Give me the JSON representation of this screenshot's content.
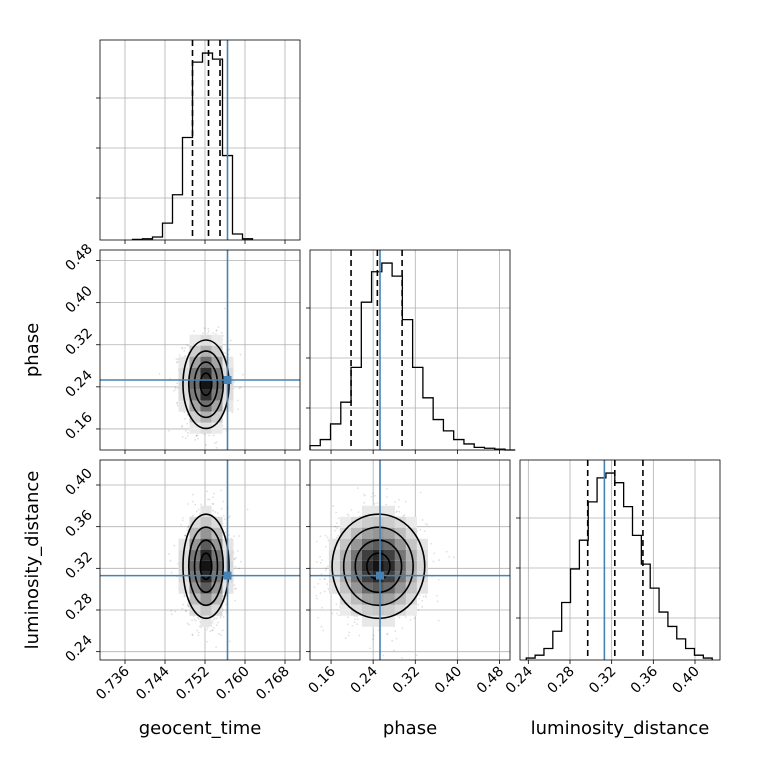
{
  "chart_data": {
    "type": "corner",
    "parameters": [
      "geocent_time",
      "phase",
      "luminosity_distance"
    ],
    "axes": {
      "geocent_time": {
        "label": "geocent_time",
        "range": [
          0.731,
          0.771
        ],
        "ticks": [
          0.736,
          0.744,
          0.752,
          0.76,
          0.768
        ],
        "tick_labels": [
          "0.736",
          "0.744",
          "0.752",
          "0.760",
          "0.768"
        ]
      },
      "phase": {
        "label": "phase",
        "range": [
          0.12,
          0.5
        ],
        "ticks": [
          0.16,
          0.24,
          0.32,
          0.4,
          0.48
        ],
        "tick_labels": [
          "0.16",
          "0.24",
          "0.32",
          "0.40",
          "0.48"
        ]
      },
      "luminosity_distance": {
        "label": "luminosity_distance",
        "range": [
          0.232,
          0.424
        ],
        "ticks": [
          0.24,
          0.28,
          0.32,
          0.36,
          0.4
        ],
        "tick_labels": [
          "0.24",
          "0.28",
          "0.32",
          "0.36",
          "0.40"
        ]
      }
    },
    "truth_values": {
      "geocent_time": 0.7565,
      "phase": 0.253,
      "luminosity_distance": 0.313
    },
    "truth_color": "#4682b4",
    "quantiles": {
      "geocent_time": [
        0.7495,
        0.7527,
        0.755
      ],
      "phase": [
        0.198,
        0.248,
        0.295
      ],
      "luminosity_distance": [
        0.297,
        0.323,
        0.35
      ]
    },
    "histograms": {
      "geocent_time": {
        "edges": [
          0.7375,
          0.7395,
          0.7415,
          0.7435,
          0.7455,
          0.7475,
          0.7495,
          0.7515,
          0.7535,
          0.7555,
          0.7575,
          0.7595,
          0.7615
        ],
        "counts": [
          1,
          2,
          5,
          28,
          75,
          170,
          295,
          310,
          300,
          140,
          10,
          2
        ]
      },
      "phase": {
        "edges": [
          0.12,
          0.1395,
          0.159,
          0.1785,
          0.198,
          0.2175,
          0.237,
          0.2565,
          0.276,
          0.2955,
          0.315,
          0.3345,
          0.354,
          0.3735,
          0.393,
          0.4125,
          0.432,
          0.4515,
          0.471,
          0.4905,
          0.51
        ],
        "counts": [
          5,
          12,
          30,
          55,
          95,
          170,
          205,
          215,
          200,
          150,
          95,
          60,
          35,
          22,
          12,
          7,
          3,
          2,
          1,
          0
        ]
      },
      "luminosity_distance": {
        "edges": [
          0.238,
          0.2465,
          0.255,
          0.2635,
          0.272,
          0.2805,
          0.289,
          0.2975,
          0.306,
          0.3145,
          0.323,
          0.3315,
          0.34,
          0.3485,
          0.357,
          0.3655,
          0.374,
          0.3825,
          0.391,
          0.3995,
          0.408,
          0.4165
        ],
        "counts": [
          2,
          5,
          12,
          30,
          60,
          95,
          125,
          165,
          190,
          195,
          185,
          160,
          130,
          100,
          75,
          50,
          35,
          22,
          12,
          5,
          2
        ]
      }
    },
    "joint": [
      {
        "x": "geocent_time",
        "y": "phase",
        "mean": [
          0.7522,
          0.245
        ],
        "sd": [
          0.0023,
          0.042
        ],
        "rho": 0.0
      },
      {
        "x": "geocent_time",
        "y": "luminosity_distance",
        "mean": [
          0.7522,
          0.322
        ],
        "sd": [
          0.0023,
          0.025
        ],
        "rho": 0.0
      },
      {
        "x": "phase",
        "y": "luminosity_distance",
        "mean": [
          0.25,
          0.322
        ],
        "sd": [
          0.044,
          0.025
        ],
        "rho": 0.0
      }
    ],
    "grid": true
  }
}
